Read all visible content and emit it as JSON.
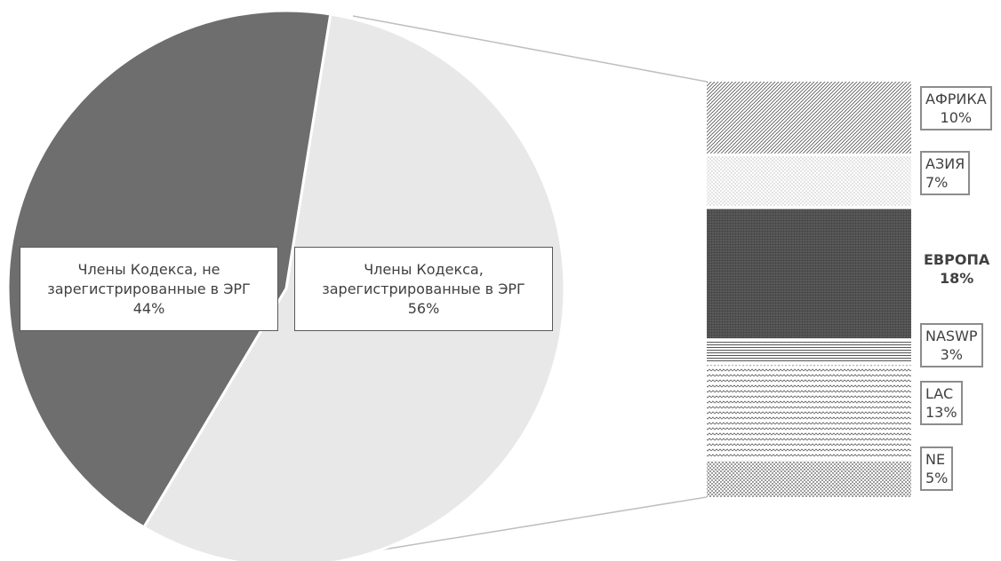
{
  "chart_data": {
    "type": "bar-of-pie",
    "pie": [
      {
        "name": "Члены Кодекса, не зарегистрированные в ЭРГ",
        "value": 44,
        "label": "44%",
        "color": "#6e6e6e"
      },
      {
        "name": "Члены Кодекса, зарегистрированные в ЭРГ",
        "value": 56,
        "label": "56%",
        "color": "#e8e8e8"
      }
    ],
    "bar": [
      {
        "name": "АФРИКА",
        "value": 10,
        "label": "10%",
        "pattern": "diagonal"
      },
      {
        "name": "АЗИЯ",
        "value": 7,
        "label": "7%",
        "pattern": "dots-light"
      },
      {
        "name": "ЕВРОПА",
        "value": 18,
        "label": "18%",
        "pattern": "dots-dense"
      },
      {
        "name": "NASWP",
        "value": 3,
        "label": "3%",
        "pattern": "horizontal"
      },
      {
        "name": "LAC",
        "value": 13,
        "label": "13%",
        "pattern": "zigzag"
      },
      {
        "name": "NE",
        "value": 5,
        "label": "5%",
        "pattern": "dots-medium"
      }
    ]
  }
}
